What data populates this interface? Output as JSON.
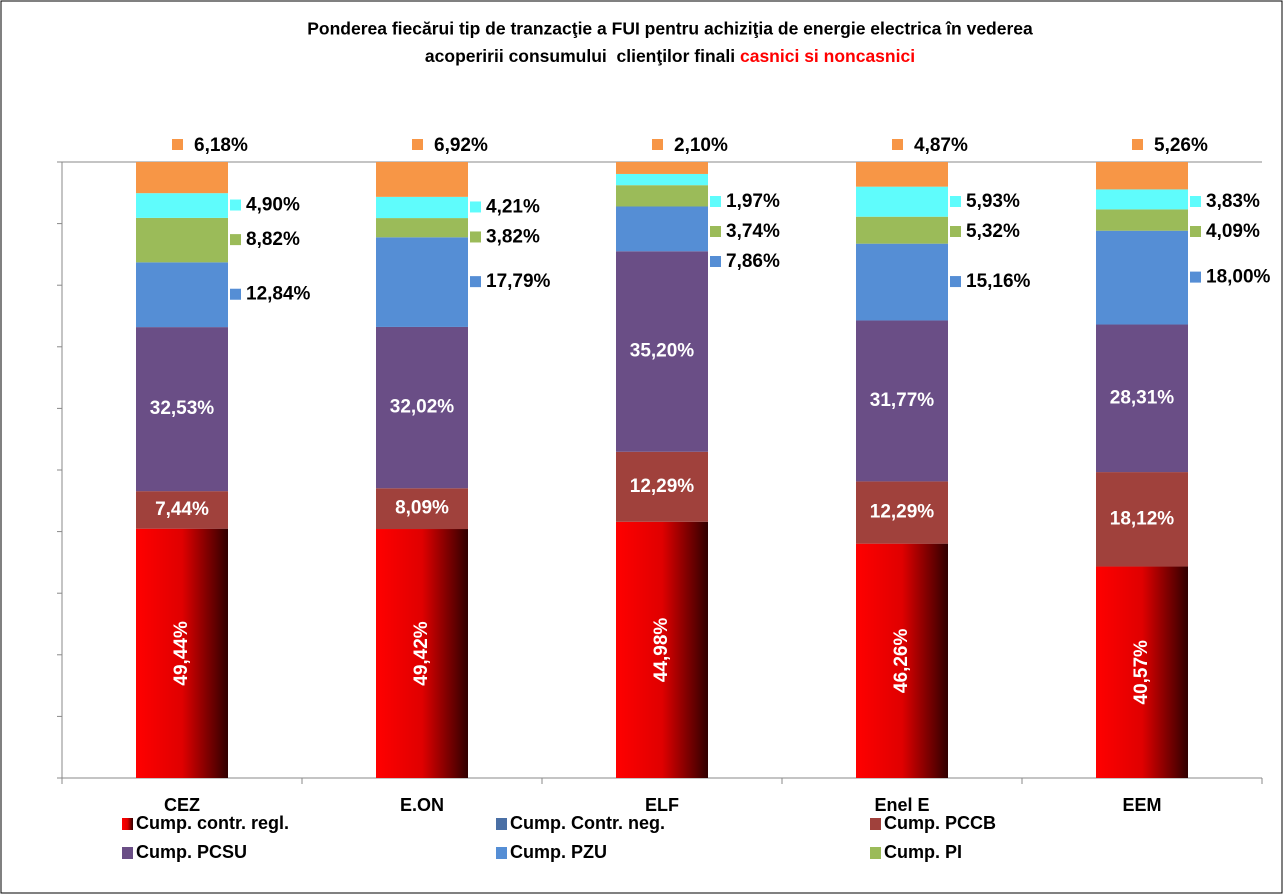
{
  "chart_data": {
    "type": "bar",
    "stacking": "percent",
    "title": [
      "Ponderea fiecărui tip de tranzacţie a FUI  pentru achiziţia de energie  electrica  în vederea",
      "acoperirii consumului  clienţilor finali "
    ],
    "title_highlight": "casnici si noncasnici",
    "title_highlight_color": "#ff0000",
    "categories": [
      "CEZ",
      "E.ON",
      "ELF",
      "Enel E",
      "EEM"
    ],
    "ylim": [
      0,
      100
    ],
    "yticks": [
      0,
      10,
      20,
      30,
      40,
      50,
      60,
      70,
      80,
      90,
      100
    ],
    "series": [
      {
        "name": "Cump. contr. regl.",
        "color": "#ff0000",
        "values": [
          49.44,
          49.42,
          44.98,
          46.26,
          40.57
        ],
        "value_labels": [
          "49,44%",
          "49,42%",
          "44,98%",
          "46,26%",
          "40,57%"
        ]
      },
      {
        "name": "Cump. Contr. neg.",
        "color": "#4a6fa5",
        "values": [
          null,
          null,
          null,
          null,
          null
        ]
      },
      {
        "name": "Cump. PCCB",
        "color": "#a0413c",
        "values": [
          7.44,
          8.09,
          12.29,
          12.29,
          18.12
        ],
        "value_labels": [
          "7,44%",
          "8,09%",
          "12,29%",
          "12,29%",
          "18,12%"
        ]
      },
      {
        "name": "Cump. PCSU",
        "color": "#6a4e86",
        "values": [
          32.53,
          32.02,
          35.2,
          31.77,
          28.31
        ],
        "value_labels": [
          "32,53%",
          "32,02%",
          "35,20%",
          "31,77%",
          "28,31%"
        ]
      },
      {
        "name": "Cump. PZU",
        "color": "#558ed5",
        "values": [
          12.84,
          17.79,
          7.86,
          15.16,
          18.0
        ],
        "value_labels": [
          "12,84%",
          "17,79%",
          "7,86%",
          "15,16%",
          "18,00%"
        ]
      },
      {
        "name": "Cump. PI",
        "color": "#9bbb59",
        "values": [
          8.82,
          3.82,
          3.74,
          5.32,
          4.09
        ],
        "value_labels": [
          "8,82%",
          "3,82%",
          "3,74%",
          "5,32%",
          "4,09%"
        ]
      },
      {
        "color": "#5ffcfc",
        "values": [
          4.9,
          4.21,
          1.97,
          5.93,
          3.83
        ],
        "value_labels": [
          "4,90%",
          "4,21%",
          "1,97%",
          "5,93%",
          "3,83%"
        ]
      },
      {
        "color": "#f79646",
        "values": [
          6.18,
          6.92,
          2.1,
          4.87,
          5.26
        ],
        "value_labels": [
          "6,18%",
          "6,92%",
          "2,10%",
          "4,87%",
          "5,26%"
        ]
      }
    ]
  }
}
